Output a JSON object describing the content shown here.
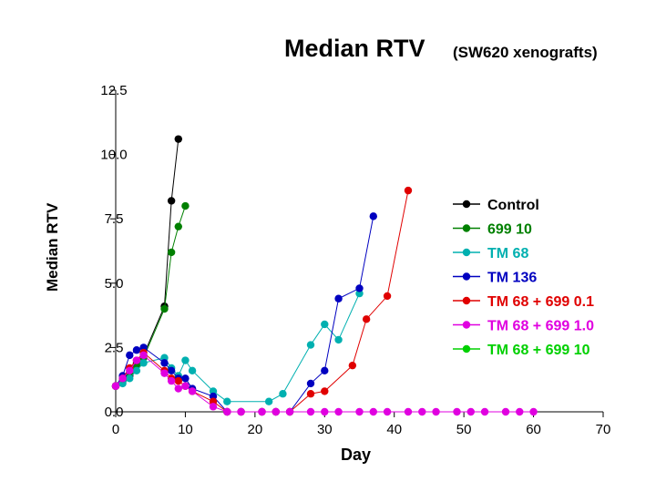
{
  "chart_data": {
    "type": "line",
    "title": "Median RTV",
    "subtitle": "(SW620 xenografts)",
    "xlabel": "Day",
    "ylabel": "Median RTV",
    "xlim": [
      0,
      70
    ],
    "ylim": [
      0,
      12.5
    ],
    "xticks": [
      0,
      10,
      20,
      30,
      40,
      50,
      60,
      70
    ],
    "yticks": [
      0.0,
      2.5,
      5.0,
      7.5,
      10.0,
      12.5
    ],
    "ytick_labels": [
      "0.0",
      "2.5",
      "5.0",
      "7.5",
      "10.0",
      "12.5"
    ],
    "xtick_labels": [
      "0",
      "10",
      "20",
      "30",
      "40",
      "50",
      "60",
      "70"
    ],
    "legend_position": "right",
    "grid": false,
    "series": [
      {
        "name": "Control",
        "color": "#000000",
        "points": [
          [
            0,
            1.0
          ],
          [
            1,
            1.2
          ],
          [
            2,
            1.4
          ],
          [
            3,
            1.9
          ],
          [
            4,
            2.2
          ],
          [
            7,
            4.1
          ],
          [
            8,
            8.2
          ],
          [
            9,
            10.6
          ]
        ]
      },
      {
        "name": "699 10",
        "color": "#008000",
        "points": [
          [
            0,
            1.0
          ],
          [
            1,
            1.3
          ],
          [
            2,
            1.5
          ],
          [
            3,
            1.8
          ],
          [
            4,
            2.1
          ],
          [
            7,
            4.0
          ],
          [
            8,
            6.2
          ],
          [
            9,
            7.2
          ],
          [
            10,
            8.0
          ]
        ]
      },
      {
        "name": "TM 68",
        "color": "#00b0b0",
        "points": [
          [
            0,
            1.0
          ],
          [
            1,
            1.1
          ],
          [
            2,
            1.3
          ],
          [
            3,
            1.6
          ],
          [
            4,
            1.9
          ],
          [
            7,
            2.1
          ],
          [
            8,
            1.7
          ],
          [
            9,
            1.4
          ],
          [
            10,
            2.0
          ],
          [
            11,
            1.6
          ],
          [
            14,
            0.8
          ],
          [
            16,
            0.4
          ],
          [
            22,
            0.4
          ],
          [
            24,
            0.7
          ],
          [
            28,
            2.6
          ],
          [
            30,
            3.4
          ],
          [
            32,
            2.8
          ],
          [
            35,
            4.6
          ]
        ]
      },
      {
        "name": "TM 136",
        "color": "#0000c0",
        "points": [
          [
            0,
            1.0
          ],
          [
            1,
            1.4
          ],
          [
            2,
            2.2
          ],
          [
            3,
            2.4
          ],
          [
            4,
            2.5
          ],
          [
            7,
            1.9
          ],
          [
            8,
            1.6
          ],
          [
            9,
            1.3
          ],
          [
            10,
            1.3
          ],
          [
            11,
            0.9
          ],
          [
            14,
            0.6
          ],
          [
            16,
            0.0
          ],
          [
            18,
            0.0
          ],
          [
            21,
            0.0
          ],
          [
            23,
            0.0
          ],
          [
            25,
            0.0
          ],
          [
            28,
            1.1
          ],
          [
            30,
            1.6
          ],
          [
            32,
            4.4
          ],
          [
            35,
            4.8
          ],
          [
            37,
            7.6
          ]
        ]
      },
      {
        "name": "TM 68 + 699 0.1",
        "color": "#e00000",
        "points": [
          [
            0,
            1.0
          ],
          [
            1,
            1.3
          ],
          [
            2,
            1.7
          ],
          [
            3,
            2.0
          ],
          [
            4,
            2.3
          ],
          [
            7,
            1.6
          ],
          [
            8,
            1.3
          ],
          [
            9,
            1.2
          ],
          [
            10,
            1.0
          ],
          [
            11,
            0.8
          ],
          [
            14,
            0.4
          ],
          [
            16,
            0.0
          ],
          [
            18,
            0.0
          ],
          [
            21,
            0.0
          ],
          [
            23,
            0.0
          ],
          [
            25,
            0.0
          ],
          [
            28,
            0.7
          ],
          [
            30,
            0.8
          ],
          [
            34,
            1.8
          ],
          [
            36,
            3.6
          ],
          [
            39,
            4.5
          ],
          [
            42,
            8.6
          ]
        ]
      },
      {
        "name": "TM 68 + 699 1.0",
        "color": "#e000e0",
        "points": [
          [
            0,
            1.0
          ],
          [
            1,
            1.3
          ],
          [
            2,
            1.6
          ],
          [
            3,
            2.0
          ],
          [
            4,
            2.2
          ],
          [
            7,
            1.5
          ],
          [
            8,
            1.2
          ],
          [
            9,
            0.9
          ],
          [
            10,
            1.0
          ],
          [
            11,
            0.8
          ],
          [
            14,
            0.2
          ],
          [
            16,
            0.0
          ],
          [
            18,
            0.0
          ],
          [
            21,
            0.0
          ],
          [
            23,
            0.0
          ],
          [
            25,
            0.0
          ],
          [
            28,
            0.0
          ],
          [
            30,
            0.0
          ],
          [
            32,
            0.0
          ],
          [
            35,
            0.0
          ],
          [
            37,
            0.0
          ],
          [
            39,
            0.0
          ],
          [
            42,
            0.0
          ],
          [
            44,
            0.0
          ],
          [
            46,
            0.0
          ],
          [
            49,
            0.0
          ],
          [
            51,
            0.0
          ],
          [
            53,
            0.0
          ],
          [
            56,
            0.0
          ],
          [
            58,
            0.0
          ],
          [
            60,
            0.0
          ]
        ]
      },
      {
        "name": "TM 68 + 699 10",
        "color": "#00d000",
        "points": []
      }
    ]
  }
}
